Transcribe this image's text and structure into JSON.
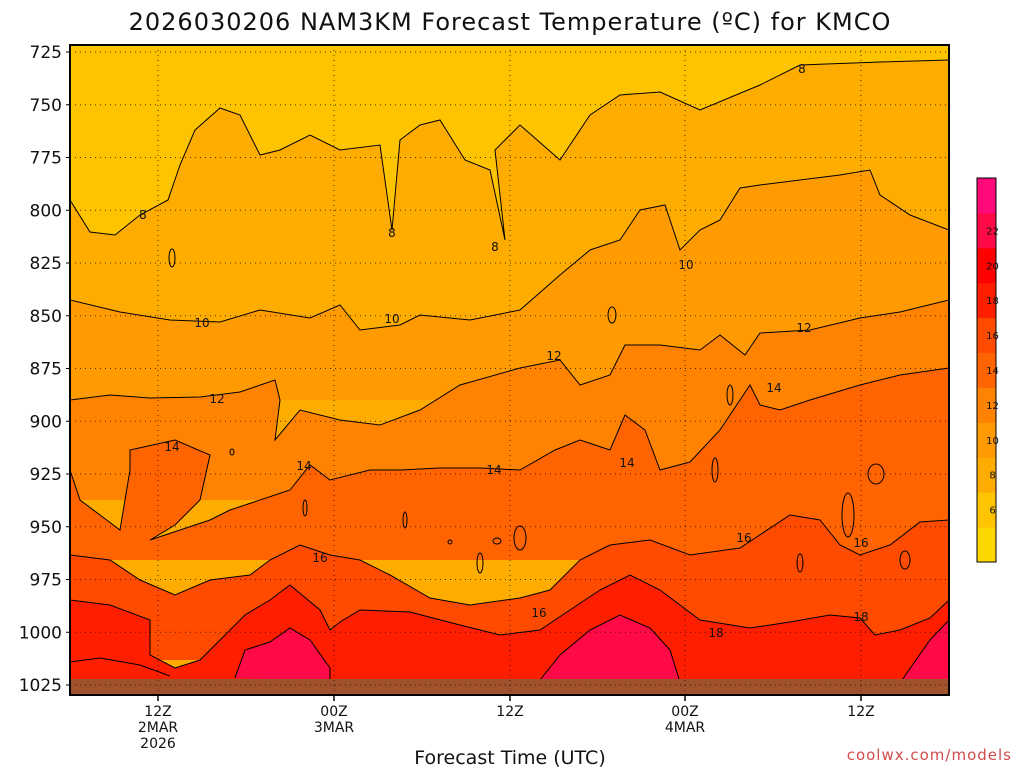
{
  "chart_data": {
    "type": "heatmap",
    "title": "2026030206 NAM3KM Forecast Temperature (ºC) for KMCO",
    "xlabel": "Forecast Time (UTC)",
    "ylabel": "",
    "x_ticks": [
      {
        "lines": [
          "12Z",
          "2MAR",
          "2026"
        ]
      },
      {
        "lines": [
          "00Z",
          "3MAR"
        ]
      },
      {
        "lines": [
          "12Z"
        ]
      },
      {
        "lines": [
          "00Z",
          "4MAR"
        ]
      },
      {
        "lines": [
          "12Z"
        ]
      }
    ],
    "y_ticks": [
      "725",
      "750",
      "775",
      "800",
      "825",
      "850",
      "875",
      "900",
      "925",
      "950",
      "975",
      "1000",
      "1025"
    ],
    "ylim": [
      725,
      1025
    ],
    "ylim_note": "pressure (hPa) increases downward",
    "colorbar": {
      "levels": [
        6,
        8,
        10,
        12,
        14,
        16,
        18,
        20,
        22
      ],
      "colors": [
        "#ffd700",
        "#ffc400",
        "#ffac00",
        "#ff9b00",
        "#ff8200",
        "#ff6400",
        "#ff4b00",
        "#ff1e00",
        "#ff0000",
        "#ff0a46",
        "#ff0a78"
      ]
    },
    "fill_bands": [
      {
        "level": "6-8",
        "color": "#ffc400"
      },
      {
        "level": "8-10",
        "color": "#ffac00"
      },
      {
        "level": "10-12",
        "color": "#ff9b00"
      },
      {
        "level": "12-14",
        "color": "#ff8200"
      },
      {
        "level": "14-16",
        "color": "#ff6400"
      },
      {
        "level": "16-18",
        "color": "#ff4b00"
      },
      {
        "level": "18-20",
        "color": "#ff1e00"
      },
      {
        "level": "20-22",
        "color": "#ff0a46"
      }
    ],
    "contour_labels": [
      "8",
      "8",
      "8",
      "8",
      "10",
      "10",
      "10",
      "12",
      "12",
      "12",
      "14",
      "14",
      "14",
      "14",
      "14",
      "16",
      "16",
      "16",
      "16",
      "18",
      "18"
    ],
    "grid": true,
    "ground_color": "#a0522d"
  },
  "credit": "coolwx.com/models"
}
